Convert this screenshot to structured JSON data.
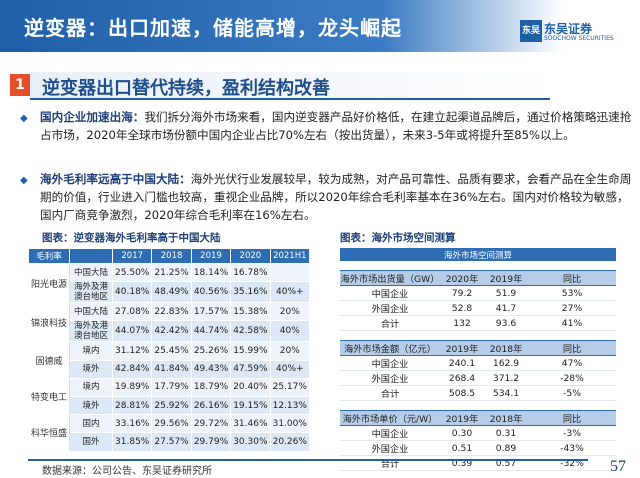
{
  "header": {
    "title": "逆变器：出口加速，储能高增，龙头崛起",
    "logo_mark": "东吴",
    "logo_brand": "东吴证券",
    "logo_en": "SOOCHOW SECURITIES"
  },
  "section": {
    "number": "1",
    "title": "逆变器出口替代持续，盈利结构改善"
  },
  "paragraphs": [
    {
      "lead": "国内企业加速出海：",
      "text": "我们拆分海外市场来看，国内逆变器产品好价格低，在建立起渠道品牌后，通过价格策略迅速抢占市场，2020年全球市场份额中国内企业占比70%左右（按出货量），未来3-5年或将提升至85%以上。"
    },
    {
      "lead": "海外毛利率远高于中国大陆：",
      "text": "海外光伏行业发展较早，较为成熟，对产品可靠性、品质有要求，会看产品在全生命周期的价值，行业进入门槛也较高，重视企业品牌，所以2020年综合毛利率基本在36%左右。国内对价格较为敏感，国内厂商竞争激烈，2020年综合毛利率在16%左右。"
    }
  ],
  "left_caption": "图表：逆变器海外毛利率高于中国大陆",
  "left_table": {
    "headers": [
      "毛利率",
      "",
      "2017",
      "2018",
      "2019",
      "2020",
      "2021H1"
    ],
    "groups": [
      {
        "company": "阳光电源",
        "rows": [
          {
            "region": "中国大陆",
            "values": [
              "25.50%",
              "21.25%",
              "18.14%",
              "16.78%",
              ""
            ]
          },
          {
            "region": "海外及港澳台地区",
            "values": [
              "40.18%",
              "48.49%",
              "40.56%",
              "35.16%",
              "40%+"
            ]
          }
        ]
      },
      {
        "company": "锦浪科技",
        "rows": [
          {
            "region": "中国大陆",
            "values": [
              "27.08%",
              "22.83%",
              "17.57%",
              "15.38%",
              "20%"
            ]
          },
          {
            "region": "海外及港澳台地区",
            "values": [
              "44.07%",
              "42.42%",
              "44.74%",
              "42.58%",
              "40%"
            ]
          }
        ]
      },
      {
        "company": "固德威",
        "rows": [
          {
            "region": "境内",
            "values": [
              "31.12%",
              "25.45%",
              "25.26%",
              "15.99%",
              "20%"
            ]
          },
          {
            "region": "境外",
            "values": [
              "42.84%",
              "41.84%",
              "49.43%",
              "47.59%",
              "40%+"
            ]
          }
        ]
      },
      {
        "company": "特变电工",
        "rows": [
          {
            "region": "境内",
            "values": [
              "19.89%",
              "17.79%",
              "18.79%",
              "20.40%",
              "25.17%"
            ]
          },
          {
            "region": "境外",
            "values": [
              "28.81%",
              "25.92%",
              "26.16%",
              "19.15%",
              "12.13%"
            ]
          }
        ]
      },
      {
        "company": "科华恒盛",
        "rows": [
          {
            "region": "国内",
            "values": [
              "33.16%",
              "29.56%",
              "29.72%",
              "31.46%",
              "31.00%"
            ]
          },
          {
            "region": "国外",
            "values": [
              "31.85%",
              "27.57%",
              "29.79%",
              "30.30%",
              "20.26%"
            ]
          }
        ]
      }
    ]
  },
  "right_caption": "图表：海外市场空间测算",
  "right_table": {
    "top": "海外市场空间测算",
    "blocks": [
      {
        "header": [
          "海外市场出货量（GW）",
          "2020年",
          "2019年",
          "同比"
        ],
        "rows": [
          [
            "中国企业",
            "79.2",
            "51.9",
            "53%"
          ],
          [
            "外国企业",
            "52.8",
            "41.7",
            "27%"
          ],
          [
            "合计",
            "132",
            "93.6",
            "41%"
          ]
        ]
      },
      {
        "header": [
          "海外市场金额（亿元）",
          "2019年",
          "2018年",
          "同比"
        ],
        "rows": [
          [
            "中国企业",
            "240.1",
            "162.9",
            "47%"
          ],
          [
            "外国企业",
            "268.4",
            "371.2",
            "-28%"
          ],
          [
            "合计",
            "508.5",
            "534.1",
            "-5%"
          ]
        ]
      },
      {
        "header": [
          "海外市场单价（元/W）",
          "2019年",
          "2018年",
          "同比"
        ],
        "rows": [
          [
            "中国企业",
            "0.30",
            "0.31",
            "-3%"
          ],
          [
            "外国企业",
            "0.51",
            "0.89",
            "-43%"
          ],
          [
            "合计",
            "0.39",
            "0.57",
            "-32%"
          ]
        ]
      }
    ]
  },
  "footer": {
    "source": "数据来源：公司公告、东吴证券研究所",
    "page": "57"
  },
  "colors": {
    "primary": "#1f5fa8",
    "accent": "#e5502a",
    "header_fill": "#2e6db4"
  }
}
